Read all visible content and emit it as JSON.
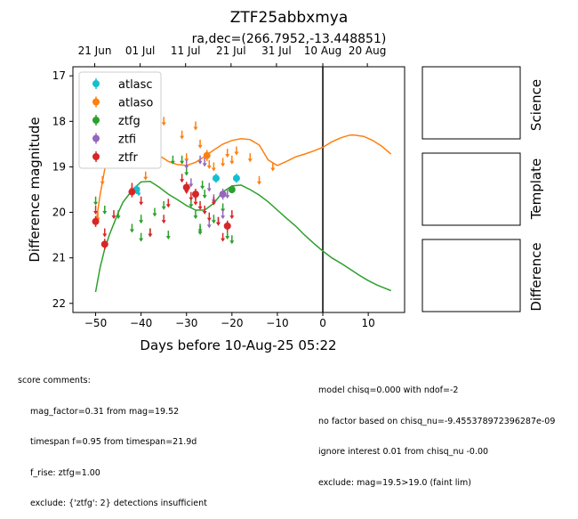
{
  "title": "ZTF25abbxmya",
  "subtitle": "ra,dec=(266.7952,-13.448851)",
  "colors": {
    "atlasc": "#17becf",
    "atlaso": "#ff7f0e",
    "ztfg": "#2ca02c",
    "ztfi": "#9467bd",
    "ztfr": "#d62728"
  },
  "side_panels": [
    "Science",
    "Template",
    "Difference"
  ],
  "chart_data": {
    "type": "scatter",
    "xlabel": "Days before 10-Aug-25 05:22",
    "ylabel": "Difference magnitude",
    "xlim": [
      -55,
      18
    ],
    "ylim": [
      22.2,
      16.8
    ],
    "x_ticks": [
      "-50",
      "-40",
      "-30",
      "-20",
      "-10",
      "0",
      "10"
    ],
    "y_ticks": [
      "17",
      "18",
      "19",
      "20",
      "21",
      "22"
    ],
    "top_ticks": [
      {
        "label": "21 Jun",
        "x": -50.2
      },
      {
        "label": "01 Jul",
        "x": -40.2
      },
      {
        "label": "11 Jul",
        "x": -30.2
      },
      {
        "label": "21 Jul",
        "x": -20.2
      },
      {
        "label": "31 Jul",
        "x": -10.2
      },
      {
        "label": "10 Aug",
        "x": 0
      },
      {
        "label": "20 Aug",
        "x": 9.8
      }
    ],
    "vline_x": 0,
    "legend": [
      "atlasc",
      "atlaso",
      "ztfg",
      "ztfi",
      "ztfr"
    ],
    "legend_position": "upper-left",
    "series": [
      {
        "name": "atlasc",
        "points": [
          {
            "x": -41,
            "y": 19.5,
            "e": 0.1
          },
          {
            "x": -23.5,
            "y": 19.25,
            "e": 0.1
          },
          {
            "x": -19,
            "y": 19.25,
            "e": 0.1
          }
        ],
        "limits": [
          [
            -40.5,
            19.55
          ]
        ]
      },
      {
        "name": "atlaso",
        "points": [
          {
            "x": -25.5,
            "y": 18.75,
            "e": 0.12
          }
        ],
        "limits": [
          [
            -49.5,
            20.1
          ],
          [
            -48.5,
            19.3
          ],
          [
            -46,
            18.9
          ],
          [
            -44,
            18.2
          ],
          [
            -40,
            18.6
          ],
          [
            -39,
            19.2
          ],
          [
            -35,
            18.0
          ],
          [
            -30,
            18.8
          ],
          [
            -28,
            18.1
          ],
          [
            -27,
            18.5
          ],
          [
            -25,
            18.95
          ],
          [
            -24,
            19.0
          ],
          [
            -22,
            18.9
          ],
          [
            -21,
            18.7
          ],
          [
            -20,
            18.85
          ],
          [
            -19,
            18.65
          ],
          [
            -16,
            18.8
          ],
          [
            -14,
            19.3
          ],
          [
            -11,
            19.0
          ],
          [
            -31,
            18.3
          ]
        ]
      },
      {
        "name": "ztfg",
        "points": [
          {
            "x": -20,
            "y": 19.5,
            "e": 0.08
          }
        ],
        "limits": [
          [
            -50,
            19.75
          ],
          [
            -48,
            19.95
          ],
          [
            -45,
            20.05
          ],
          [
            -42,
            20.35
          ],
          [
            -40,
            20.55
          ],
          [
            -40,
            20.15
          ],
          [
            -38,
            20.45
          ],
          [
            -37,
            20.0
          ],
          [
            -35,
            19.85
          ],
          [
            -34,
            20.5
          ],
          [
            -33,
            18.85
          ],
          [
            -31,
            18.85
          ],
          [
            -29,
            19.8
          ],
          [
            -28,
            20.05
          ],
          [
            -27,
            20.35
          ],
          [
            -27,
            20.4
          ],
          [
            -26,
            19.6
          ],
          [
            -24,
            20.15
          ],
          [
            -22,
            19.9
          ],
          [
            -21,
            20.5
          ],
          [
            -20,
            20.6
          ],
          [
            -30,
            19.1
          ],
          [
            -26.5,
            19.4
          ]
        ]
      },
      {
        "name": "ztfi",
        "points": [
          {
            "x": -22,
            "y": 19.6,
            "e": 0.12
          }
        ],
        "limits": [
          [
            -30,
            18.95
          ],
          [
            -29,
            19.35
          ],
          [
            -27,
            18.85
          ],
          [
            -26,
            18.9
          ],
          [
            -25,
            19.45
          ],
          [
            -24,
            19.7
          ],
          [
            -23,
            20.2
          ],
          [
            -22,
            20.05
          ],
          [
            -25,
            20.25
          ],
          [
            -21,
            19.6
          ]
        ]
      },
      {
        "name": "ztfr",
        "points": [
          {
            "x": -50,
            "y": 20.2,
            "e": 0.12
          },
          {
            "x": -48,
            "y": 20.7,
            "e": 0.12
          },
          {
            "x": -42,
            "y": 19.55,
            "e": 0.12
          },
          {
            "x": -30,
            "y": 19.45,
            "e": 0.12
          },
          {
            "x": -28,
            "y": 19.6,
            "e": 0.12
          },
          {
            "x": -21,
            "y": 20.3,
            "e": 0.12
          }
        ],
        "limits": [
          [
            -50,
            19.95
          ],
          [
            -48,
            20.45
          ],
          [
            -46,
            20.05
          ],
          [
            -42,
            19.45
          ],
          [
            -40,
            19.75
          ],
          [
            -38,
            20.45
          ],
          [
            -35,
            20.15
          ],
          [
            -34,
            19.8
          ],
          [
            -31,
            19.25
          ],
          [
            -30,
            19.5
          ],
          [
            -29,
            19.65
          ],
          [
            -28,
            19.75
          ],
          [
            -27,
            19.85
          ],
          [
            -26,
            19.95
          ],
          [
            -25,
            20.1
          ],
          [
            -24,
            19.75
          ],
          [
            -23,
            20.2
          ],
          [
            -22,
            20.55
          ],
          [
            -21,
            20.3
          ],
          [
            -20,
            20.05
          ]
        ]
      }
    ],
    "curves": [
      {
        "name": "atlaso",
        "points": [
          [
            -50,
            20.3
          ],
          [
            -49,
            19.6
          ],
          [
            -48,
            19.05
          ],
          [
            -47,
            18.7
          ],
          [
            -46,
            18.52
          ],
          [
            -45,
            18.45
          ],
          [
            -44,
            18.42
          ],
          [
            -42,
            18.45
          ],
          [
            -40,
            18.5
          ],
          [
            -38,
            18.62
          ],
          [
            -36,
            18.75
          ],
          [
            -34,
            18.88
          ],
          [
            -32,
            18.95
          ],
          [
            -30,
            18.97
          ],
          [
            -28,
            18.9
          ],
          [
            -26,
            18.77
          ],
          [
            -24,
            18.63
          ],
          [
            -22,
            18.5
          ],
          [
            -20,
            18.42
          ],
          [
            -18,
            18.38
          ],
          [
            -16,
            18.4
          ],
          [
            -14,
            18.52
          ],
          [
            -12,
            18.85
          ],
          [
            -10,
            18.97
          ],
          [
            -8,
            18.88
          ],
          [
            -6,
            18.78
          ],
          [
            -4,
            18.72
          ],
          [
            -2,
            18.65
          ],
          [
            0,
            18.57
          ],
          [
            2,
            18.45
          ],
          [
            4,
            18.36
          ],
          [
            6,
            18.3
          ],
          [
            7,
            18.3
          ],
          [
            9,
            18.33
          ],
          [
            11,
            18.42
          ],
          [
            13,
            18.55
          ],
          [
            15,
            18.72
          ]
        ]
      },
      {
        "name": "ztfg",
        "points": [
          [
            -50,
            21.75
          ],
          [
            -49,
            21.2
          ],
          [
            -48,
            20.8
          ],
          [
            -47,
            20.5
          ],
          [
            -46,
            20.25
          ],
          [
            -45,
            20.0
          ],
          [
            -44,
            19.78
          ],
          [
            -42,
            19.52
          ],
          [
            -40,
            19.33
          ],
          [
            -38,
            19.32
          ],
          [
            -36,
            19.45
          ],
          [
            -34,
            19.6
          ],
          [
            -32,
            19.72
          ],
          [
            -30,
            19.85
          ],
          [
            -28,
            19.95
          ],
          [
            -26,
            19.95
          ],
          [
            -24,
            19.8
          ],
          [
            -22,
            19.55
          ],
          [
            -20,
            19.42
          ],
          [
            -18,
            19.4
          ],
          [
            -16,
            19.5
          ],
          [
            -14,
            19.62
          ],
          [
            -12,
            19.77
          ],
          [
            -10,
            19.95
          ],
          [
            -8,
            20.13
          ],
          [
            -6,
            20.3
          ],
          [
            -4,
            20.5
          ],
          [
            -2,
            20.68
          ],
          [
            0,
            20.85
          ],
          [
            2,
            21.0
          ],
          [
            4,
            21.12
          ],
          [
            6,
            21.25
          ],
          [
            8,
            21.38
          ],
          [
            10,
            21.5
          ],
          [
            12,
            21.6
          ],
          [
            14,
            21.68
          ],
          [
            15,
            21.72
          ]
        ]
      }
    ]
  },
  "comments": {
    "header": "score comments:",
    "left": [
      "mag_factor=0.31 from mag=19.52",
      "timespan f=0.95 from timespan=21.9d",
      "f_rise: ztfg=1.00",
      "exclude: {'ztfg': 2} detections insufficient"
    ],
    "right": [
      "model chisq=0.000 with ndof=-2",
      "no factor based on chisq_nu=-9.455378972396287e-09",
      "ignore interest 0.01 from chisq_nu -0.00",
      "exclude: mag=19.5>19.0 (faint lim)"
    ]
  }
}
